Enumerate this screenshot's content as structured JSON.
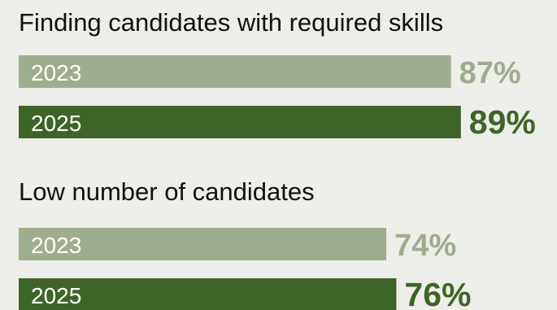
{
  "chart_data": {
    "type": "bar",
    "orientation": "horizontal",
    "groups": [
      {
        "title": "Finding candidates with required skills",
        "bars": [
          {
            "year": "2023",
            "value": 87,
            "label": "87%"
          },
          {
            "year": "2025",
            "value": 89,
            "label": "89%"
          }
        ]
      },
      {
        "title": "Low number of candidates",
        "bars": [
          {
            "year": "2023",
            "value": 74,
            "label": "74%"
          },
          {
            "year": "2025",
            "value": 76,
            "label": "76%"
          }
        ]
      }
    ],
    "xlim": [
      0,
      100
    ],
    "grid": false,
    "legend": "none"
  },
  "colors": {
    "background": "#edeee9",
    "bar_2023": "#9fad8f",
    "bar_2025": "#3f6428",
    "label_2023": "#9fad8f",
    "label_2025": "#3f6428",
    "title": "#111111"
  }
}
